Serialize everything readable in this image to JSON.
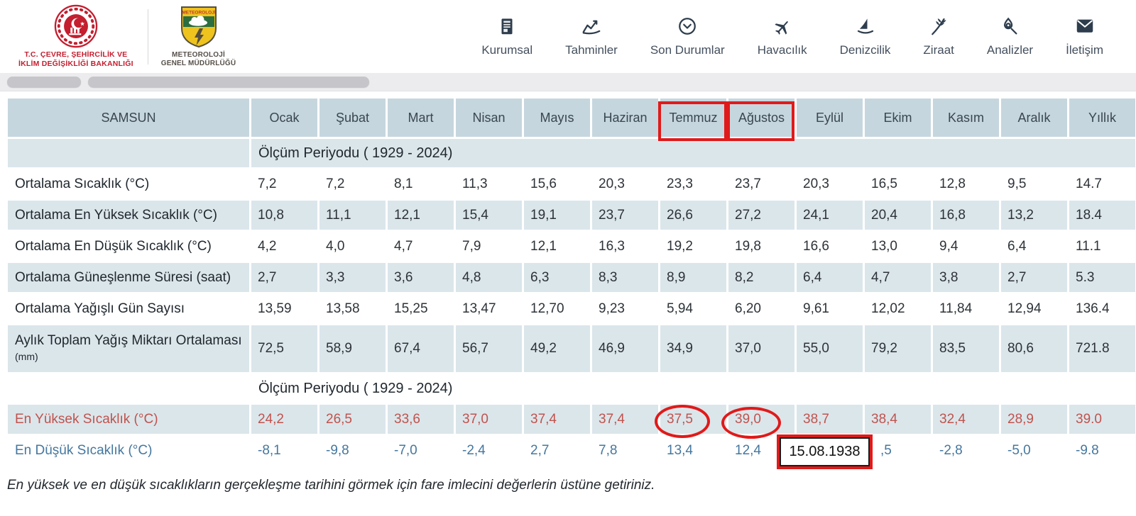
{
  "header": {
    "ministry_caption_line1": "T.C. ÇEVRE, ŞEHİRCİLİK VE",
    "ministry_caption_line2": "İKLİM DEĞİŞİKLİĞİ BAKANLIĞI",
    "mgm_logo_text": "METEOROLOJİ",
    "mgm_caption_line1": "METEOROLOJİ",
    "mgm_caption_line2": "GENEL MÜDÜRLÜĞÜ",
    "nav": [
      {
        "label": "Kurumsal",
        "icon": "building-icon"
      },
      {
        "label": "Tahminler",
        "icon": "line-chart-icon"
      },
      {
        "label": "Son Durumlar",
        "icon": "clock-circle-icon"
      },
      {
        "label": "Havacılık",
        "icon": "airplane-icon"
      },
      {
        "label": "Denizcilik",
        "icon": "sailboat-icon"
      },
      {
        "label": "Ziraat",
        "icon": "wheat-icon"
      },
      {
        "label": "Analizler",
        "icon": "magnifier-icon"
      },
      {
        "label": "İletişim",
        "icon": "envelope-icon"
      }
    ]
  },
  "table": {
    "station": "SAMSUN",
    "months": [
      "Ocak",
      "Şubat",
      "Mart",
      "Nisan",
      "Mayıs",
      "Haziran",
      "Temmuz",
      "Ağustos",
      "Eylül",
      "Ekim",
      "Kasım",
      "Aralık",
      "Yıllık"
    ],
    "rows": [
      {
        "type": "period",
        "text": "Ölçüm Periyodu ( 1929 - 2024)"
      },
      {
        "type": "data",
        "label": "Ortalama Sıcaklık (°C)",
        "values": [
          "7,2",
          "7,2",
          "8,1",
          "11,3",
          "15,6",
          "20,3",
          "23,3",
          "23,7",
          "20,3",
          "16,5",
          "12,8",
          "9,5",
          "14.7"
        ]
      },
      {
        "type": "data",
        "label": "Ortalama En Yüksek Sıcaklık (°C)",
        "values": [
          "10,8",
          "11,1",
          "12,1",
          "15,4",
          "19,1",
          "23,7",
          "26,6",
          "27,2",
          "24,1",
          "20,4",
          "16,8",
          "13,2",
          "18.4"
        ]
      },
      {
        "type": "data",
        "label": "Ortalama En Düşük Sıcaklık (°C)",
        "values": [
          "4,2",
          "4,0",
          "4,7",
          "7,9",
          "12,1",
          "16,3",
          "19,2",
          "19,8",
          "16,6",
          "13,0",
          "9,4",
          "6,4",
          "11.1"
        ]
      },
      {
        "type": "data",
        "label": "Ortalama Güneşlenme Süresi (saat)",
        "values": [
          "2,7",
          "3,3",
          "3,6",
          "4,8",
          "6,3",
          "8,3",
          "8,9",
          "8,2",
          "6,4",
          "4,7",
          "3,8",
          "2,7",
          "5.3"
        ]
      },
      {
        "type": "data",
        "label": "Ortalama Yağışlı Gün Sayısı",
        "values": [
          "13,59",
          "13,58",
          "15,25",
          "13,47",
          "12,70",
          "9,23",
          "5,94",
          "6,20",
          "9,61",
          "12,02",
          "11,84",
          "12,94",
          "136.4"
        ]
      },
      {
        "type": "data",
        "label": "Aylık Toplam Yağış Miktarı Ortalaması",
        "label_small": "(mm)",
        "wrap": true,
        "values": [
          "72,5",
          "58,9",
          "67,4",
          "56,7",
          "49,2",
          "46,9",
          "34,9",
          "37,0",
          "55,0",
          "79,2",
          "83,5",
          "80,6",
          "721.8"
        ]
      },
      {
        "type": "period",
        "text": "Ölçüm Periyodu ( 1929 - 2024)"
      },
      {
        "type": "data",
        "style": "red",
        "hoverable": true,
        "label": "En Yüksek Sıcaklık (°C)",
        "values": [
          "24,2",
          "26,5",
          "33,6",
          "37,0",
          "37,4",
          "37,4",
          "37,5",
          "39,0",
          "38,7",
          "38,4",
          "32,4",
          "28,9",
          "39.0"
        ]
      },
      {
        "type": "data",
        "style": "blue",
        "hoverable": true,
        "label": "En Düşük Sıcaklık (°C)",
        "values": [
          "-8,1",
          "-9,8",
          "-7,0",
          "-2,4",
          "2,7",
          "7,8",
          "13,4",
          "12,4",
          "",
          ",5",
          "-2,8",
          "-5,0",
          "-9.8"
        ]
      }
    ]
  },
  "annotations": {
    "boxed_months": [
      "Temmuz",
      "Ağustos"
    ],
    "circled_values": [
      "37,5",
      "39,0"
    ],
    "tooltip_date": "15.08.1938",
    "annotation_color": "#e01a1a"
  },
  "note": "En yüksek ve en düşük sıcaklıkların gerçekleşme tarihini görmek için fare imlecini değerlerin üstüne getiriniz."
}
